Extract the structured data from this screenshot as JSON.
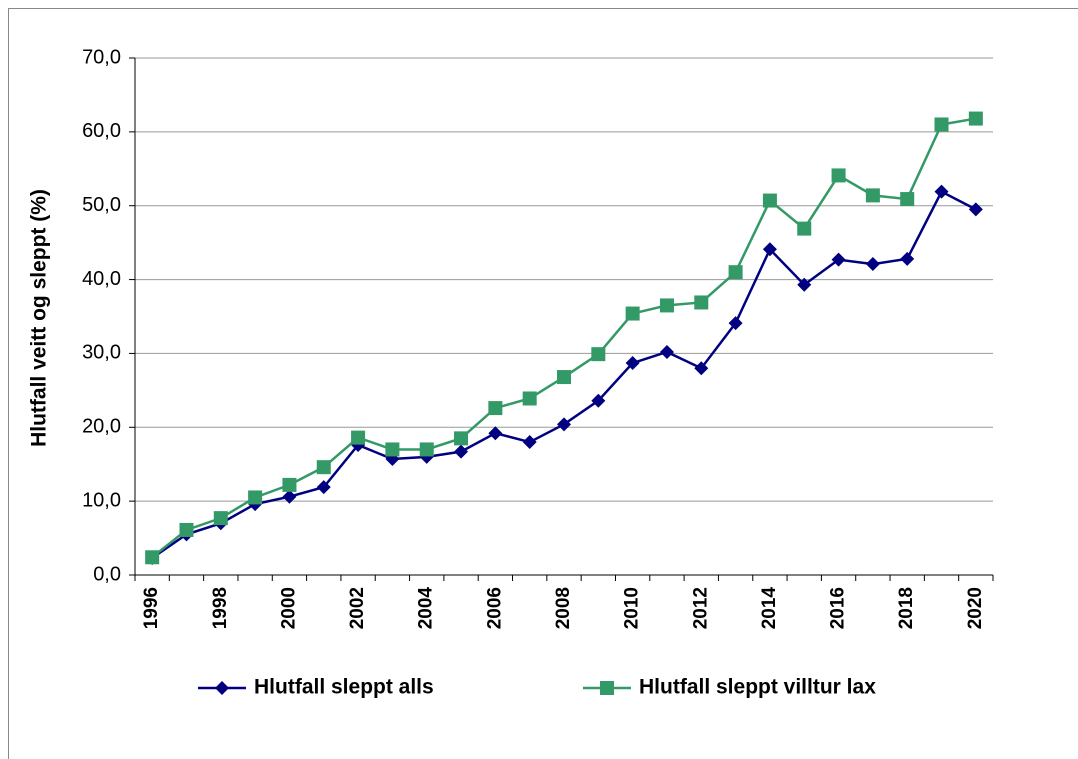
{
  "chart_data": {
    "type": "line",
    "y_axis_label": "Hlutfall veitt og sleppt (%)",
    "categories": [
      "1996",
      null,
      "1998",
      null,
      "2000",
      null,
      "2002",
      null,
      "2004",
      null,
      "2006",
      null,
      "2008",
      null,
      "2010",
      null,
      "2012",
      null,
      "2014",
      null,
      "2016",
      null,
      "2018",
      null,
      "2020"
    ],
    "series": [
      {
        "name": "Hlutfall sleppt alls",
        "color": "#000080",
        "marker": "diamond",
        "values": [
          2.3,
          5.5,
          7.0,
          9.6,
          10.6,
          11.9,
          17.6,
          15.7,
          16.0,
          16.7,
          19.2,
          18.0,
          20.4,
          23.6,
          28.7,
          30.2,
          28.0,
          34.1,
          44.1,
          39.3,
          42.7,
          42.1,
          42.8,
          51.9,
          49.5
        ]
      },
      {
        "name": "Hlutfall sleppt villtur lax",
        "color": "#339966",
        "marker": "square",
        "values": [
          2.4,
          6.1,
          7.7,
          10.5,
          12.2,
          14.6,
          18.6,
          17.0,
          17.0,
          18.5,
          22.6,
          23.9,
          26.8,
          29.9,
          35.4,
          36.5,
          36.9,
          41.0,
          50.7,
          46.9,
          54.1,
          51.4,
          50.9,
          61.0,
          61.8
        ]
      }
    ],
    "ylim": [
      0,
      70
    ],
    "yticks": [
      {
        "value": 0,
        "label": "0,0"
      },
      {
        "value": 10,
        "label": "10,0"
      },
      {
        "value": 20,
        "label": "20,0"
      },
      {
        "value": 30,
        "label": "30,0"
      },
      {
        "value": 40,
        "label": "40,0"
      },
      {
        "value": 50,
        "label": "50,0"
      },
      {
        "value": 60,
        "label": "60,0"
      },
      {
        "value": 70,
        "label": "70,0"
      }
    ],
    "grid": true,
    "legend": "bottom"
  }
}
